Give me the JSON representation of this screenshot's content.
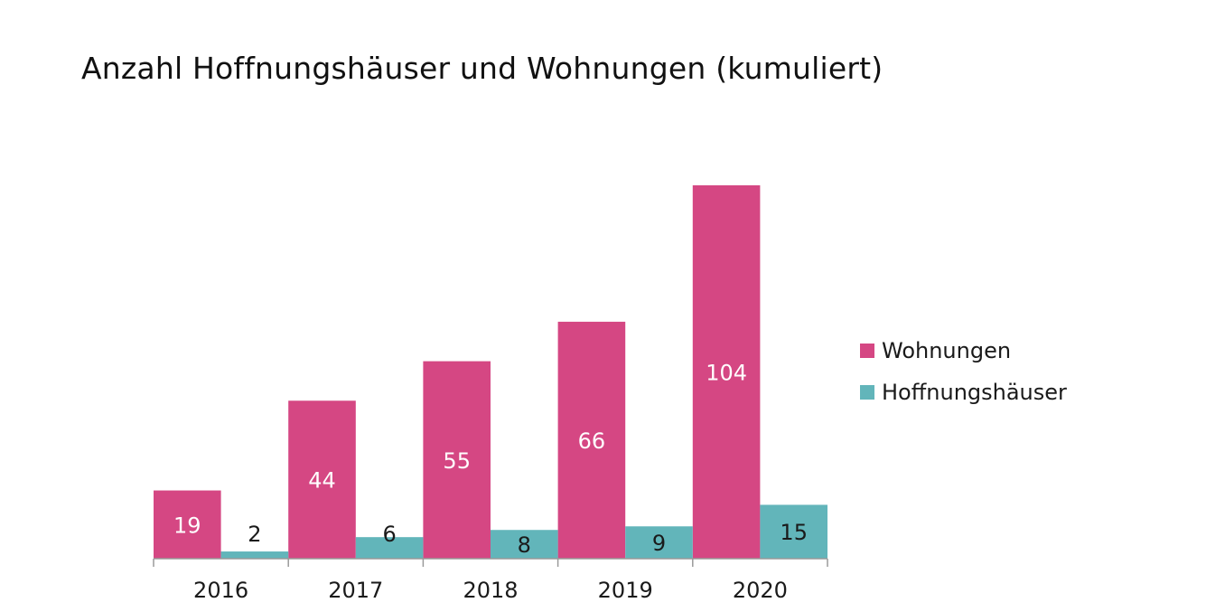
{
  "chart_data": {
    "type": "bar",
    "title": "Anzahl Hoffnungshäuser und Wohnungen (kumuliert)",
    "categories": [
      "2016",
      "2017",
      "2018",
      "2019",
      "2020"
    ],
    "series": [
      {
        "name": "Wohnungen",
        "values": [
          19,
          44,
          55,
          66,
          104
        ],
        "color": "#D54783",
        "label_color": "#ffffff"
      },
      {
        "name": "Hoffnungshäuser",
        "values": [
          2,
          6,
          8,
          9,
          15
        ],
        "color": "#62B5BA",
        "label_color": "#1a1a1a"
      }
    ],
    "xlabel": "",
    "ylabel": "",
    "ylim": [
      0,
      104
    ],
    "grid": false,
    "legend_position": "right"
  }
}
